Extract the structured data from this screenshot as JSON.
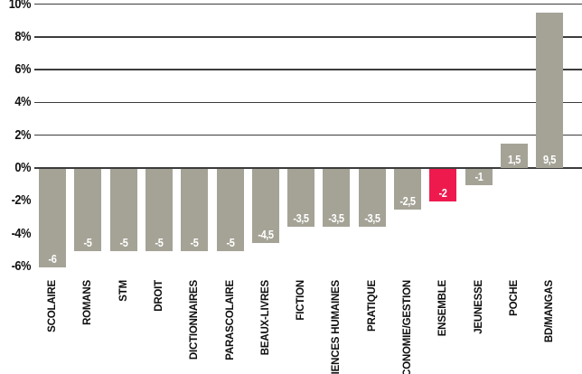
{
  "chart_data": {
    "type": "bar",
    "title": "",
    "xlabel": "",
    "ylabel": "",
    "categories": [
      "SCOLAIRE",
      "ROMANS",
      "STM",
      "DROIT",
      "DICTIONNAIRES",
      "PARASCOLAIRE",
      "BEAUX-LIVRES",
      "FICTION",
      "SCIENCES HUMAINES",
      "PRATIQUE",
      "ECONOMIE/GESTION",
      "ENSEMBLE",
      "JEUNESSE",
      "POCHE",
      "BD/MANGAS"
    ],
    "values": [
      -6,
      -5,
      -5,
      -5,
      -5,
      -5,
      -4.5,
      -3.5,
      -3.5,
      -3.5,
      -2.5,
      -2,
      -1,
      1.5,
      9.5
    ],
    "value_labels": [
      "-6",
      "-5",
      "-5",
      "-5",
      "-5",
      "-5",
      "-4,5",
      "-3,5",
      "-3,5",
      "-3,5",
      "-2,5",
      "-2",
      "-1",
      "1,5",
      "9,5"
    ],
    "highlight_category": "ENSEMBLE",
    "highlight_index": 11,
    "bar_color": "#a5a396",
    "highlight_color": "#ee1a4e",
    "value_label_color": "#ffffff",
    "axis_line_color": "#3c3c3c",
    "ylim": [
      -6,
      10
    ],
    "yticks": [
      {
        "label": "10%",
        "value": 10
      },
      {
        "label": "8%",
        "value": 8
      },
      {
        "label": "6%",
        "value": 6
      },
      {
        "label": "4%",
        "value": 4
      },
      {
        "label": "2%",
        "value": 2
      },
      {
        "label": "0%",
        "value": 0
      },
      {
        "label": "-2%",
        "value": -2
      },
      {
        "label": "-4%",
        "value": -4
      },
      {
        "label": "-6%",
        "value": -6
      }
    ],
    "gridlines_at": [
      10,
      8,
      6,
      4,
      2
    ],
    "grid": "horizontal gridlines in positive region only, plus zero baseline",
    "legend": "none",
    "decimal_separator": ","
  }
}
